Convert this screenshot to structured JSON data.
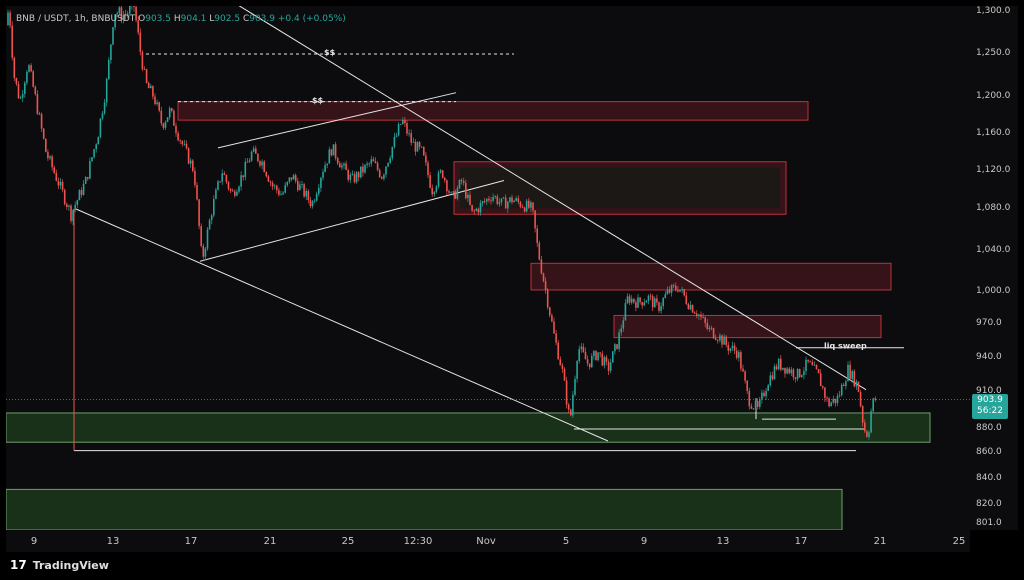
{
  "legend": {
    "symbol": "BNB / USDT, 1h, BNBUSDT",
    "o_label": "O",
    "o_value": "903.5",
    "h_label": "H",
    "h_value": "904.1",
    "l_label": "L",
    "l_value": "902.5",
    "c_label": "C",
    "c_value": "903.9",
    "change": "+0.4 (+0.05%)"
  },
  "price_tag": {
    "price": "903.9",
    "countdown": "56:22"
  },
  "footer": {
    "brand": "TradingView",
    "logo_mark": "17"
  },
  "colors": {
    "up": "#26a69a",
    "down": "#ef5350",
    "line": "#e6e6e6",
    "supply_fill": "#5a1a20",
    "supply_border": "#c0303a",
    "demand_fill": "#1d3a1d",
    "demand_border": "#6fa06f",
    "bg": "#0c0c0e"
  },
  "chart_data": {
    "type": "candlestick",
    "ylim": [
      801,
      1300
    ],
    "y_axis_scale": "log",
    "y_ticks": [
      "1,300.0",
      "1,250.0",
      "1,200.0",
      "1,160.0",
      "1,120.0",
      "1,080.0",
      "1,040.0",
      "1,000.0",
      "970.0",
      "940.0",
      "910.0",
      "880.0",
      "860.0",
      "840.0",
      "820.0",
      "801.0"
    ],
    "x_ticks": [
      "9",
      "13",
      "17",
      "21",
      "25",
      "12:30",
      "Nov",
      "5",
      "9",
      "13",
      "17",
      "21",
      "25"
    ],
    "annotations": {
      "dollar_1": "$$",
      "dollar_2": "$$",
      "liq_sweep": "liq sweep"
    },
    "grid": false,
    "price_path": [
      [
        0,
        1280
      ],
      [
        3,
        1300
      ],
      [
        8,
        1225
      ],
      [
        14,
        1195
      ],
      [
        22,
        1240
      ],
      [
        40,
        1140
      ],
      [
        65,
        1075
      ],
      [
        80,
        1110
      ],
      [
        92,
        1160
      ],
      [
        100,
        1210
      ],
      [
        108,
        1295
      ],
      [
        118,
        1290
      ],
      [
        128,
        1300
      ],
      [
        134,
        1255
      ],
      [
        140,
        1215
      ],
      [
        148,
        1200
      ],
      [
        156,
        1170
      ],
      [
        164,
        1185
      ],
      [
        172,
        1160
      ],
      [
        180,
        1140
      ],
      [
        188,
        1120
      ],
      [
        196,
        1030
      ],
      [
        206,
        1080
      ],
      [
        216,
        1120
      ],
      [
        226,
        1095
      ],
      [
        236,
        1115
      ],
      [
        246,
        1140
      ],
      [
        256,
        1130
      ],
      [
        266,
        1105
      ],
      [
        276,
        1095
      ],
      [
        286,
        1115
      ],
      [
        296,
        1100
      ],
      [
        306,
        1085
      ],
      [
        316,
        1120
      ],
      [
        326,
        1145
      ],
      [
        336,
        1125
      ],
      [
        346,
        1110
      ],
      [
        356,
        1120
      ],
      [
        366,
        1130
      ],
      [
        376,
        1115
      ],
      [
        386,
        1145
      ],
      [
        396,
        1175
      ],
      [
        406,
        1150
      ],
      [
        416,
        1140
      ],
      [
        426,
        1100
      ],
      [
        436,
        1120
      ],
      [
        446,
        1090
      ],
      [
        456,
        1110
      ],
      [
        466,
        1075
      ],
      [
        476,
        1085
      ],
      [
        486,
        1095
      ],
      [
        496,
        1085
      ],
      [
        506,
        1090
      ],
      [
        516,
        1085
      ],
      [
        526,
        1080
      ],
      [
        532,
        1040
      ],
      [
        540,
        1000
      ],
      [
        548,
        960
      ],
      [
        556,
        930
      ],
      [
        564,
        885
      ],
      [
        572,
        950
      ],
      [
        582,
        935
      ],
      [
        592,
        945
      ],
      [
        602,
        930
      ],
      [
        612,
        955
      ],
      [
        622,
        995
      ],
      [
        632,
        990
      ],
      [
        642,
        995
      ],
      [
        652,
        985
      ],
      [
        662,
        1000
      ],
      [
        672,
        1005
      ],
      [
        682,
        990
      ],
      [
        692,
        980
      ],
      [
        702,
        965
      ],
      [
        712,
        960
      ],
      [
        722,
        950
      ],
      [
        732,
        945
      ],
      [
        742,
        905
      ],
      [
        752,
        895
      ],
      [
        762,
        920
      ],
      [
        772,
        935
      ],
      [
        782,
        930
      ],
      [
        792,
        925
      ],
      [
        802,
        935
      ],
      [
        812,
        925
      ],
      [
        822,
        900
      ],
      [
        832,
        905
      ],
      [
        842,
        930
      ],
      [
        852,
        915
      ],
      [
        858,
        880
      ],
      [
        862,
        875
      ],
      [
        866,
        900
      ],
      [
        870,
        905
      ]
    ],
    "supply_zones": [
      {
        "low": 1175,
        "high": 1195,
        "from": 172,
        "to": 802
      },
      {
        "low": 1075,
        "high": 1130,
        "from": 448,
        "to": 780
      },
      {
        "low": 1002,
        "high": 1028,
        "from": 525,
        "to": 885
      },
      {
        "low": 958,
        "high": 978,
        "from": 608,
        "to": 875
      }
    ],
    "demand_zones": [
      {
        "low": 869,
        "high": 893,
        "from": 0,
        "to": 924
      },
      {
        "low": 801,
        "high": 832,
        "from": 0,
        "to": 836
      }
    ],
    "dashed_levels": [
      {
        "price": 1250,
        "from": 140,
        "to": 508
      },
      {
        "price": 1195,
        "from": 172,
        "to": 450
      }
    ],
    "horizontal_lines": [
      {
        "price": 862,
        "from": 68,
        "to": 850
      },
      {
        "price": 880,
        "from": 568,
        "to": 858
      },
      {
        "price": 888,
        "from": 756,
        "to": 830
      },
      {
        "price": 949,
        "from": 790,
        "to": 898
      }
    ],
    "trend_lines": [
      {
        "p1": [
          210,
          1315
        ],
        "p2": [
          860,
          912
        ]
      },
      {
        "p1": [
          70,
          1080
        ],
        "p2": [
          602,
          870
        ]
      },
      {
        "p1": [
          194,
          1030
        ],
        "p2": [
          498,
          1110
        ]
      },
      {
        "p1": [
          212,
          1145
        ],
        "p2": [
          450,
          1205
        ]
      }
    ]
  }
}
